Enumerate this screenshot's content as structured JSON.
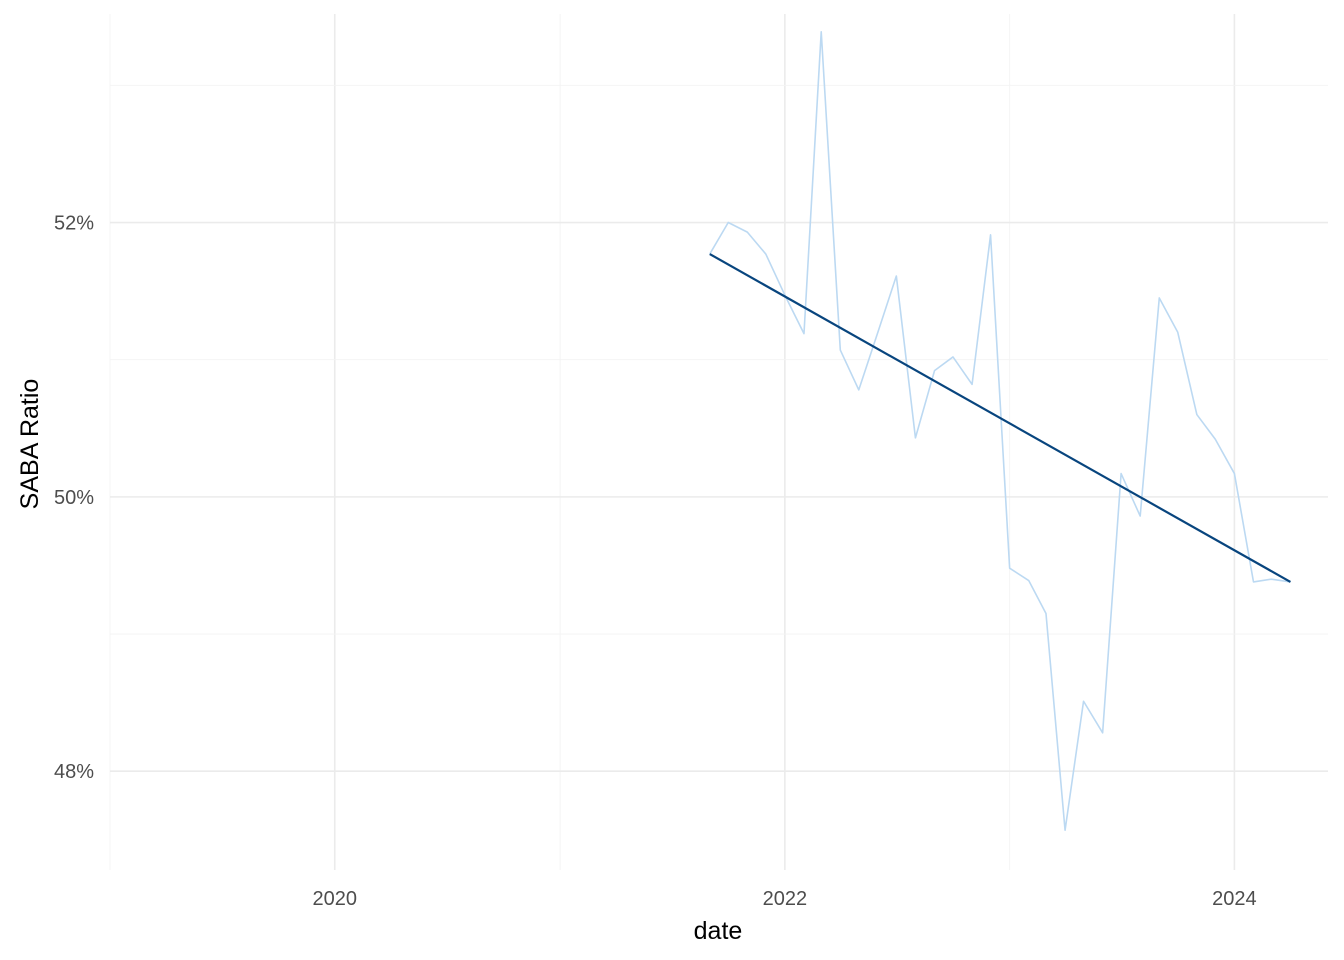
{
  "chart_data": {
    "type": "line",
    "xlabel": "date",
    "ylabel": "SABA Ratio",
    "x_tick_labels": [
      "2020",
      "2022",
      "2024"
    ],
    "y_tick_labels": [
      "48%",
      "50%",
      "52%"
    ],
    "xlim": [
      "2019-01-01",
      "2024-06-01"
    ],
    "ylim": [
      0.4728,
      0.5352
    ],
    "grid": true,
    "legend": "none",
    "series": [
      {
        "style": "raw",
        "color": "#bcd9f2",
        "x": [
          "2021-09-01",
          "2021-10-01",
          "2021-11-01",
          "2021-12-01",
          "2022-01-01",
          "2022-02-01",
          "2022-03-01",
          "2022-04-01",
          "2022-05-01",
          "2022-06-01",
          "2022-07-01",
          "2022-08-01",
          "2022-09-01",
          "2022-10-01",
          "2022-11-01",
          "2022-12-01",
          "2023-01-01",
          "2023-02-01",
          "2023-03-01",
          "2023-04-01",
          "2023-05-01",
          "2023-06-01",
          "2023-07-01",
          "2023-08-01",
          "2023-09-01",
          "2023-10-01",
          "2023-11-01",
          "2023-12-01",
          "2024-01-01",
          "2024-02-01",
          "2024-03-01",
          "2024-04-01"
        ],
        "values": [
          0.5177,
          0.52,
          0.5193,
          0.5177,
          0.5147,
          0.5119,
          0.5339,
          0.5107,
          0.5078,
          0.512,
          0.5161,
          0.5043,
          0.5092,
          0.5102,
          0.5082,
          0.5191,
          0.4948,
          0.4939,
          0.4915,
          0.4757,
          0.4851,
          0.4828,
          0.5017,
          0.4986,
          0.5145,
          0.512,
          0.506,
          0.5042,
          0.5017,
          0.4938,
          0.494,
          0.4938
        ]
      },
      {
        "style": "trend",
        "color": "#08457e",
        "x": [
          "2021-09-01",
          "2024-04-01"
        ],
        "values": [
          0.5177,
          0.4938
        ]
      }
    ]
  }
}
